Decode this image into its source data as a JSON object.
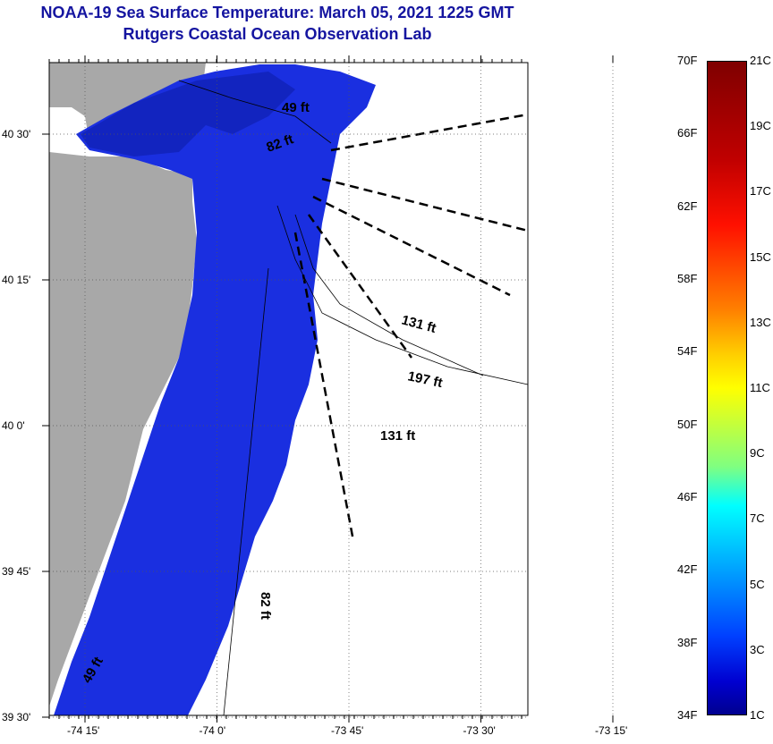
{
  "title": {
    "line1": "NOAA-19 Sea Surface Temperature:  March 05, 2021 1225 GMT",
    "line2": "Rutgers Coastal Ocean Observation Lab"
  },
  "map": {
    "lat_ticks": [
      {
        "label": "40 30'",
        "value": 40.5
      },
      {
        "label": "40 15'",
        "value": 40.25
      },
      {
        "label": "40 0'",
        "value": 40.0
      },
      {
        "label": "39 45'",
        "value": 39.75
      },
      {
        "label": "39 30'",
        "value": 39.5
      }
    ],
    "lon_ticks": [
      {
        "label": "-74 15'",
        "value": -74.25
      },
      {
        "label": "-74 0'",
        "value": -74.0
      },
      {
        "label": "-73 45'",
        "value": -73.75
      },
      {
        "label": "-73 30'",
        "value": -73.5
      },
      {
        "label": "-73 15'",
        "value": -73.25
      }
    ],
    "contour_labels": [
      "49 ft",
      "82 ft",
      "131 ft",
      "197 ft",
      "131 ft",
      "82 ft",
      "49 ft"
    ],
    "colors": {
      "land": "#a8a8a8",
      "sst": "#1a2fe0",
      "sst_dark": "#0f1fb0"
    }
  },
  "colorbar": {
    "fahrenheit": [
      {
        "label": "70F",
        "value": 70
      },
      {
        "label": "66F",
        "value": 66
      },
      {
        "label": "62F",
        "value": 62
      },
      {
        "label": "58F",
        "value": 58
      },
      {
        "label": "54F",
        "value": 54
      },
      {
        "label": "50F",
        "value": 50
      },
      {
        "label": "46F",
        "value": 46
      },
      {
        "label": "42F",
        "value": 42
      },
      {
        "label": "38F",
        "value": 38
      },
      {
        "label": "34F",
        "value": 34
      }
    ],
    "celsius": [
      {
        "label": "21C",
        "value": 21
      },
      {
        "label": "19C",
        "value": 19
      },
      {
        "label": "17C",
        "value": 17
      },
      {
        "label": "15C",
        "value": 15
      },
      {
        "label": "13C",
        "value": 13
      },
      {
        "label": "11C",
        "value": 11
      },
      {
        "label": "9C",
        "value": 9
      },
      {
        "label": "7C",
        "value": 7
      },
      {
        "label": "5C",
        "value": 5
      },
      {
        "label": "3C",
        "value": 3
      },
      {
        "label": "1C",
        "value": 1
      }
    ]
  }
}
